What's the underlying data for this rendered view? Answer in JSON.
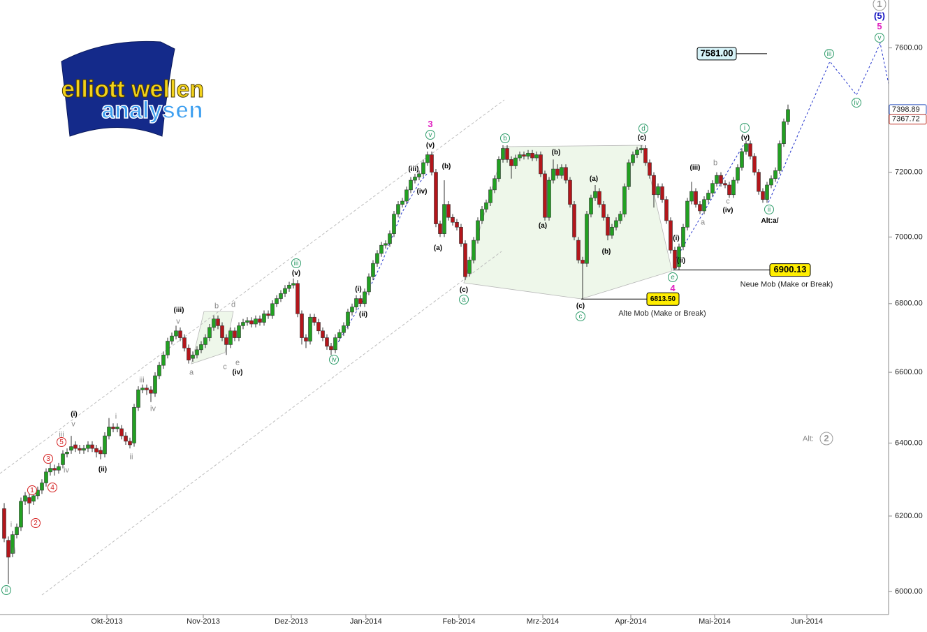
{
  "chart_data": {
    "type": "candlestick",
    "logo": {
      "line1": "elliott wellen",
      "line2": "analysen"
    },
    "candles": [
      [
        6220,
        6235,
        6130,
        6140
      ],
      [
        6135,
        6145,
        6020,
        6090
      ],
      [
        6100,
        6160,
        6090,
        6150
      ],
      [
        6150,
        6180,
        6140,
        6170
      ],
      [
        6170,
        6250,
        6160,
        6240
      ],
      [
        6240,
        6265,
        6230,
        6255
      ],
      [
        6250,
        6260,
        6205,
        6235
      ],
      [
        6240,
        6265,
        6230,
        6255
      ],
      [
        6255,
        6280,
        6245,
        6270
      ],
      [
        6270,
        6300,
        6260,
        6290
      ],
      [
        6290,
        6330,
        6280,
        6320
      ],
      [
        6320,
        6345,
        6310,
        6330
      ],
      [
        6330,
        6340,
        6310,
        6325
      ],
      [
        6325,
        6345,
        6315,
        6335
      ],
      [
        6340,
        6380,
        6330,
        6370
      ],
      [
        6370,
        6385,
        6360,
        6375
      ],
      [
        6380,
        6420,
        6370,
        6390
      ],
      [
        6395,
        6405,
        6375,
        6385
      ],
      [
        6385,
        6395,
        6370,
        6380
      ],
      [
        6380,
        6395,
        6370,
        6385
      ],
      [
        6385,
        6405,
        6375,
        6395
      ],
      [
        6395,
        6405,
        6375,
        6385
      ],
      [
        6385,
        6395,
        6360,
        6375
      ],
      [
        6380,
        6390,
        6355,
        6370
      ],
      [
        6370,
        6430,
        6360,
        6420
      ],
      [
        6420,
        6470,
        6410,
        6445
      ],
      [
        6445,
        6455,
        6430,
        6440
      ],
      [
        6440,
        6455,
        6430,
        6445
      ],
      [
        6440,
        6450,
        6410,
        6420
      ],
      [
        6420,
        6430,
        6395,
        6405
      ],
      [
        6405,
        6415,
        6385,
        6395
      ],
      [
        6400,
        6510,
        6390,
        6500
      ],
      [
        6500,
        6560,
        6490,
        6550
      ],
      [
        6550,
        6565,
        6540,
        6555
      ],
      [
        6555,
        6565,
        6535,
        6550
      ],
      [
        6550,
        6560,
        6515,
        6540
      ],
      [
        6540,
        6600,
        6530,
        6590
      ],
      [
        6590,
        6630,
        6580,
        6620
      ],
      [
        6620,
        6660,
        6610,
        6650
      ],
      [
        6650,
        6700,
        6640,
        6690
      ],
      [
        6690,
        6715,
        6680,
        6705
      ],
      [
        6705,
        6735,
        6695,
        6720
      ],
      [
        6720,
        6730,
        6690,
        6700
      ],
      [
        6700,
        6710,
        6660,
        6670
      ],
      [
        6670,
        6680,
        6625,
        6635
      ],
      [
        6640,
        6660,
        6630,
        6650
      ],
      [
        6650,
        6675,
        6640,
        6665
      ],
      [
        6665,
        6690,
        6655,
        6680
      ],
      [
        6680,
        6710,
        6670,
        6700
      ],
      [
        6700,
        6740,
        6690,
        6730
      ],
      [
        6730,
        6765,
        6720,
        6755
      ],
      [
        6755,
        6765,
        6725,
        6735
      ],
      [
        6735,
        6745,
        6690,
        6700
      ],
      [
        6700,
        6710,
        6650,
        6680
      ],
      [
        6680,
        6730,
        6670,
        6720
      ],
      [
        6720,
        6730,
        6690,
        6700
      ],
      [
        6700,
        6745,
        6690,
        6735
      ],
      [
        6735,
        6755,
        6725,
        6745
      ],
      [
        6745,
        6760,
        6735,
        6750
      ],
      [
        6750,
        6760,
        6730,
        6740
      ],
      [
        6740,
        6765,
        6730,
        6755
      ],
      [
        6755,
        6765,
        6735,
        6745
      ],
      [
        6745,
        6780,
        6735,
        6770
      ],
      [
        6770,
        6780,
        6755,
        6765
      ],
      [
        6765,
        6810,
        6755,
        6800
      ],
      [
        6800,
        6825,
        6790,
        6815
      ],
      [
        6815,
        6840,
        6805,
        6830
      ],
      [
        6830,
        6855,
        6820,
        6845
      ],
      [
        6845,
        6865,
        6835,
        6855
      ],
      [
        6855,
        6875,
        6845,
        6860
      ],
      [
        6860,
        6870,
        6760,
        6770
      ],
      [
        6770,
        6780,
        6680,
        6700
      ],
      [
        6700,
        6710,
        6670,
        6690
      ],
      [
        6690,
        6770,
        6680,
        6760
      ],
      [
        6760,
        6770,
        6735,
        6745
      ],
      [
        6745,
        6755,
        6710,
        6720
      ],
      [
        6720,
        6730,
        6690,
        6700
      ],
      [
        6700,
        6710,
        6665,
        6675
      ],
      [
        6675,
        6685,
        6650,
        6665
      ],
      [
        6665,
        6710,
        6655,
        6700
      ],
      [
        6700,
        6725,
        6690,
        6715
      ],
      [
        6715,
        6745,
        6705,
        6735
      ],
      [
        6735,
        6785,
        6725,
        6775
      ],
      [
        6775,
        6800,
        6765,
        6790
      ],
      [
        6790,
        6825,
        6780,
        6815
      ],
      [
        6815,
        6825,
        6790,
        6800
      ],
      [
        6800,
        6845,
        6790,
        6835
      ],
      [
        6835,
        6890,
        6825,
        6880
      ],
      [
        6880,
        6930,
        6870,
        6920
      ],
      [
        6920,
        6960,
        6910,
        6950
      ],
      [
        6950,
        6985,
        6940,
        6975
      ],
      [
        6975,
        6990,
        6965,
        6980
      ],
      [
        6980,
        7020,
        6970,
        7010
      ],
      [
        7010,
        7080,
        7000,
        7070
      ],
      [
        7070,
        7110,
        7060,
        7100
      ],
      [
        7100,
        7120,
        7090,
        7110
      ],
      [
        7110,
        7155,
        7100,
        7145
      ],
      [
        7145,
        7185,
        7135,
        7175
      ],
      [
        7175,
        7195,
        7165,
        7185
      ],
      [
        7185,
        7205,
        7175,
        7195
      ],
      [
        7195,
        7240,
        7185,
        7230
      ],
      [
        7230,
        7265,
        7220,
        7255
      ],
      [
        7255,
        7265,
        7190,
        7200
      ],
      [
        7200,
        7210,
        7030,
        7040
      ],
      [
        7040,
        7050,
        7000,
        7010
      ],
      [
        7010,
        7175,
        7000,
        7100
      ],
      [
        7100,
        7110,
        7050,
        7060
      ],
      [
        7060,
        7070,
        7035,
        7045
      ],
      [
        7045,
        7055,
        7020,
        7030
      ],
      [
        7030,
        7040,
        6970,
        6980
      ],
      [
        6980,
        6990,
        6870,
        6880
      ],
      [
        6890,
        6940,
        6880,
        6930
      ],
      [
        6930,
        7000,
        6920,
        6990
      ],
      [
        6990,
        7060,
        6980,
        7050
      ],
      [
        7050,
        7095,
        7040,
        7085
      ],
      [
        7085,
        7115,
        7075,
        7105
      ],
      [
        7105,
        7155,
        7095,
        7145
      ],
      [
        7145,
        7190,
        7135,
        7180
      ],
      [
        7180,
        7250,
        7170,
        7240
      ],
      [
        7240,
        7285,
        7230,
        7275
      ],
      [
        7275,
        7285,
        7230,
        7240
      ],
      [
        7240,
        7250,
        7180,
        7220
      ],
      [
        7220,
        7255,
        7210,
        7245
      ],
      [
        7245,
        7265,
        7235,
        7255
      ],
      [
        7255,
        7265,
        7240,
        7250
      ],
      [
        7250,
        7270,
        7240,
        7260
      ],
      [
        7260,
        7270,
        7235,
        7245
      ],
      [
        7245,
        7265,
        7235,
        7255
      ],
      [
        7255,
        7265,
        7185,
        7195
      ],
      [
        7195,
        7205,
        7050,
        7060
      ],
      [
        7060,
        7185,
        7050,
        7175
      ],
      [
        7175,
        7240,
        7165,
        7210
      ],
      [
        7210,
        7225,
        7180,
        7190
      ],
      [
        7190,
        7225,
        7180,
        7215
      ],
      [
        7215,
        7225,
        7165,
        7175
      ],
      [
        7175,
        7185,
        7090,
        7100
      ],
      [
        7100,
        7110,
        6990,
        7000
      ],
      [
        6990,
        7000,
        6920,
        6930
      ],
      [
        6930,
        6940,
        6813.5,
        6920
      ],
      [
        6920,
        7080,
        6910,
        7070
      ],
      [
        7070,
        7130,
        7060,
        7120
      ],
      [
        7120,
        7160,
        7110,
        7140
      ],
      [
        7140,
        7150,
        7090,
        7100
      ],
      [
        7100,
        7110,
        7050,
        7060
      ],
      [
        7060,
        7070,
        6990,
        7005
      ],
      [
        7005,
        7040,
        6995,
        7030
      ],
      [
        7030,
        7060,
        7020,
        7050
      ],
      [
        7050,
        7080,
        7040,
        7070
      ],
      [
        7070,
        7165,
        7060,
        7155
      ],
      [
        7155,
        7240,
        7145,
        7230
      ],
      [
        7230,
        7265,
        7220,
        7255
      ],
      [
        7255,
        7280,
        7245,
        7270
      ],
      [
        7270,
        7285,
        7260,
        7275
      ],
      [
        7275,
        7285,
        7220,
        7230
      ],
      [
        7230,
        7240,
        7180,
        7190
      ],
      [
        7190,
        7200,
        7090,
        7130
      ],
      [
        7130,
        7165,
        7120,
        7155
      ],
      [
        7155,
        7165,
        7105,
        7115
      ],
      [
        7115,
        7125,
        7040,
        7050
      ],
      [
        7050,
        7060,
        6950,
        6960
      ],
      [
        6960,
        6970,
        6900.13,
        6905
      ],
      [
        6910,
        6980,
        6900,
        6970
      ],
      [
        6970,
        7040,
        6960,
        7030
      ],
      [
        7030,
        7120,
        7020,
        7110
      ],
      [
        7110,
        7170,
        7100,
        7140
      ],
      [
        7140,
        7150,
        7090,
        7100
      ],
      [
        7100,
        7110,
        7070,
        7080
      ],
      [
        7080,
        7125,
        7070,
        7115
      ],
      [
        7115,
        7145,
        7105,
        7135
      ],
      [
        7135,
        7175,
        7125,
        7165
      ],
      [
        7165,
        7200,
        7155,
        7190
      ],
      [
        7190,
        7200,
        7155,
        7165
      ],
      [
        7165,
        7175,
        7150,
        7160
      ],
      [
        7160,
        7170,
        7120,
        7130
      ],
      [
        7130,
        7185,
        7120,
        7175
      ],
      [
        7175,
        7225,
        7165,
        7215
      ],
      [
        7215,
        7275,
        7205,
        7265
      ],
      [
        7265,
        7300,
        7255,
        7290
      ],
      [
        7290,
        7300,
        7240,
        7250
      ],
      [
        7250,
        7260,
        7190,
        7200
      ],
      [
        7200,
        7210,
        7130,
        7140
      ],
      [
        7140,
        7150,
        7105,
        7115
      ],
      [
        7115,
        7170,
        7105,
        7160
      ],
      [
        7160,
        7190,
        7150,
        7180
      ],
      [
        7180,
        7215,
        7170,
        7205
      ],
      [
        7205,
        7300,
        7195,
        7290
      ],
      [
        7290,
        7370,
        7280,
        7360
      ],
      [
        7360,
        7415,
        7350,
        7398.89
      ]
    ],
    "up_color": "#22a022",
    "down_color": "#b3161b",
    "log_scale": true,
    "ylim": [
      5940,
      7760
    ],
    "yticks": [
      {
        "value": 6000,
        "label": "6000.00"
      },
      {
        "value": 6200,
        "label": "6200.00"
      },
      {
        "value": 6400,
        "label": "6400.00"
      },
      {
        "value": 6600,
        "label": "6600.00"
      },
      {
        "value": 6800,
        "label": "6800.00"
      },
      {
        "value": 7000,
        "label": "7000.00"
      },
      {
        "value": 7200,
        "label": "7200.00"
      },
      {
        "value": 7600,
        "label": "7600.00"
      }
    ],
    "xlim": [
      -1,
      211
    ],
    "xticks": [
      {
        "value": 24.5,
        "label": "Okt-2013"
      },
      {
        "value": 47.5,
        "label": "Nov-2013"
      },
      {
        "value": 68.5,
        "label": "Dez-2013"
      },
      {
        "value": 86.3,
        "label": "Jan-2014"
      },
      {
        "value": 108.5,
        "label": "Feb-2014"
      },
      {
        "value": 128.5,
        "label": "Mrz-2014"
      },
      {
        "value": 149.5,
        "label": "Apr-2014"
      },
      {
        "value": 169.5,
        "label": "Mai-2014"
      },
      {
        "value": 191.5,
        "label": "Jun-2014"
      }
    ],
    "price_markers": [
      {
        "value": 7398.89,
        "color": "#2a52be"
      },
      {
        "value": 7367.72,
        "color": "#c0392b"
      }
    ],
    "levels": [
      {
        "value": {
          "value": 7581,
          "label": "7581.00"
        },
        "color": "#d6f3f8"
      },
      {
        "value": 6900.13,
        "color": "#ffee00",
        "note": "Neue Mob (Make or Break)"
      },
      {
        "value": {
          "value": 6813.5,
          "label": "6813.50"
        },
        "color": "#ffee00",
        "note": "Alte Mob (Make or Break)"
      }
    ],
    "annotations": [
      "ii",
      "iii",
      "iv",
      "a",
      "b",
      "c",
      "d",
      "e",
      "i",
      "ii",
      "iii",
      "iv",
      "v",
      "v",
      "1",
      "2",
      "3",
      "4",
      "5",
      "1",
      "(iii)",
      "(v)",
      "(i)",
      "(ii)",
      "(iv)",
      "(i)",
      "(ii)",
      "(iii)",
      "(iv)",
      "(v)",
      "(a)",
      "(b)",
      "(c)",
      "(a)",
      "(b)",
      "(c)",
      "(a)",
      "(b)",
      "(c)",
      "(i)",
      "(ii)",
      "(iii)",
      "(iv)",
      "(v)",
      "Alt:a/",
      "v",
      "b",
      "d",
      "a",
      "c",
      "e",
      "iii",
      "iv",
      "i",
      "ii",
      "v",
      "iii",
      "iv",
      "i",
      "ii",
      "b",
      "c",
      "a",
      "3",
      "4",
      "5",
      "(5)",
      "Alt:",
      "2"
    ]
  }
}
